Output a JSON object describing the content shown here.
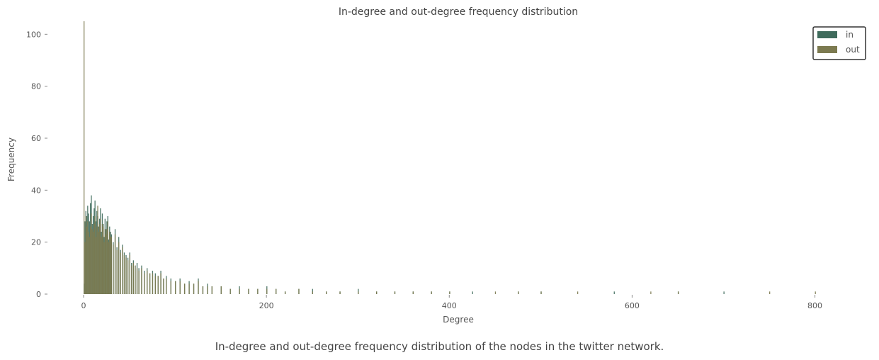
{
  "caption": "In-degree and out-degree frequency distribution of the nodes in the twitter network.",
  "chart_data": {
    "type": "bar",
    "title": "In-degree and out-degree frequency distribution",
    "xlabel": "Degree",
    "ylabel": "Frequency",
    "xlim": [
      0,
      860
    ],
    "ylim": [
      0,
      105
    ],
    "xticks": [
      0,
      200,
      400,
      600,
      800
    ],
    "yticks": [
      0,
      20,
      40,
      60,
      80,
      100
    ],
    "xtick_labels": [
      "0",
      "200",
      "400",
      "600",
      "800"
    ],
    "ytick_labels": [
      "0",
      "20",
      "40",
      "60",
      "80",
      "100"
    ],
    "grid": false,
    "legend_position": "top-right",
    "bin_width": 1,
    "series": [
      {
        "name": "in",
        "color": "#3f6b5c",
        "x": [
          0,
          1,
          2,
          3,
          4,
          5,
          6,
          7,
          8,
          9,
          10,
          11,
          12,
          13,
          14,
          15,
          16,
          17,
          18,
          19,
          20,
          21,
          22,
          23,
          24,
          25,
          26,
          27,
          28,
          29,
          30,
          32,
          34,
          36,
          38,
          40,
          42,
          44,
          46,
          48,
          50,
          52,
          54,
          56,
          58,
          60,
          63,
          66,
          69,
          72,
          75,
          78,
          81,
          84,
          87,
          90,
          95,
          100,
          105,
          110,
          115,
          120,
          125,
          130,
          135,
          140,
          150,
          160,
          170,
          180,
          190,
          200,
          210,
          220,
          235,
          250,
          265,
          280,
          300,
          320,
          340,
          360,
          380,
          400,
          425,
          450,
          475,
          500,
          540,
          580,
          620,
          650,
          700,
          750,
          800
        ],
        "values": [
          4,
          28,
          32,
          30,
          34,
          31,
          28,
          35,
          38,
          27,
          30,
          33,
          36,
          28,
          32,
          30,
          26,
          29,
          33,
          24,
          31,
          27,
          22,
          29,
          25,
          28,
          30,
          21,
          26,
          24,
          23,
          20,
          25,
          18,
          22,
          17,
          19,
          16,
          15,
          14,
          16,
          12,
          13,
          11,
          12,
          10,
          11,
          9,
          10,
          8,
          9,
          8,
          7,
          9,
          6,
          7,
          6,
          5,
          6,
          4,
          5,
          4,
          6,
          3,
          4,
          3,
          3,
          2,
          3,
          2,
          2,
          3,
          2,
          1,
          2,
          2,
          1,
          1,
          2,
          1,
          1,
          1,
          1,
          1,
          1,
          0,
          1,
          1,
          0,
          1,
          0,
          1,
          1,
          0,
          0
        ]
      },
      {
        "name": "out",
        "color": "#7c7a50",
        "x": [
          0,
          1,
          2,
          3,
          4,
          5,
          6,
          7,
          8,
          9,
          10,
          11,
          12,
          13,
          14,
          15,
          16,
          17,
          18,
          19,
          20,
          21,
          22,
          23,
          24,
          25,
          26,
          27,
          28,
          29,
          30,
          32,
          34,
          36,
          38,
          40,
          42,
          44,
          46,
          48,
          50,
          52,
          54,
          56,
          58,
          60,
          63,
          66,
          69,
          72,
          75,
          78,
          81,
          84,
          87,
          90,
          95,
          100,
          105,
          110,
          115,
          120,
          125,
          130,
          135,
          140,
          150,
          160,
          170,
          180,
          190,
          200,
          210,
          220,
          235,
          250,
          265,
          280,
          300,
          320,
          340,
          360,
          380,
          400,
          425,
          450,
          475,
          500,
          540,
          580,
          620,
          650,
          700,
          750,
          800
        ],
        "values": [
          105,
          20,
          30,
          26,
          28,
          24,
          22,
          26,
          31,
          25,
          24,
          27,
          30,
          22,
          26,
          34,
          24,
          27,
          29,
          22,
          27,
          26,
          20,
          25,
          23,
          25,
          28,
          20,
          24,
          22,
          22,
          19,
          23,
          17,
          20,
          16,
          18,
          15,
          14,
          13,
          15,
          11,
          12,
          11,
          10,
          9,
          10,
          8,
          9,
          8,
          8,
          7,
          7,
          8,
          6,
          6,
          5,
          5,
          5,
          4,
          4,
          4,
          5,
          3,
          3,
          3,
          3,
          2,
          2,
          2,
          2,
          2,
          2,
          1,
          2,
          1,
          1,
          1,
          1,
          1,
          1,
          1,
          1,
          1,
          0,
          1,
          1,
          1,
          1,
          0,
          1,
          1,
          0,
          1,
          1
        ]
      }
    ]
  }
}
